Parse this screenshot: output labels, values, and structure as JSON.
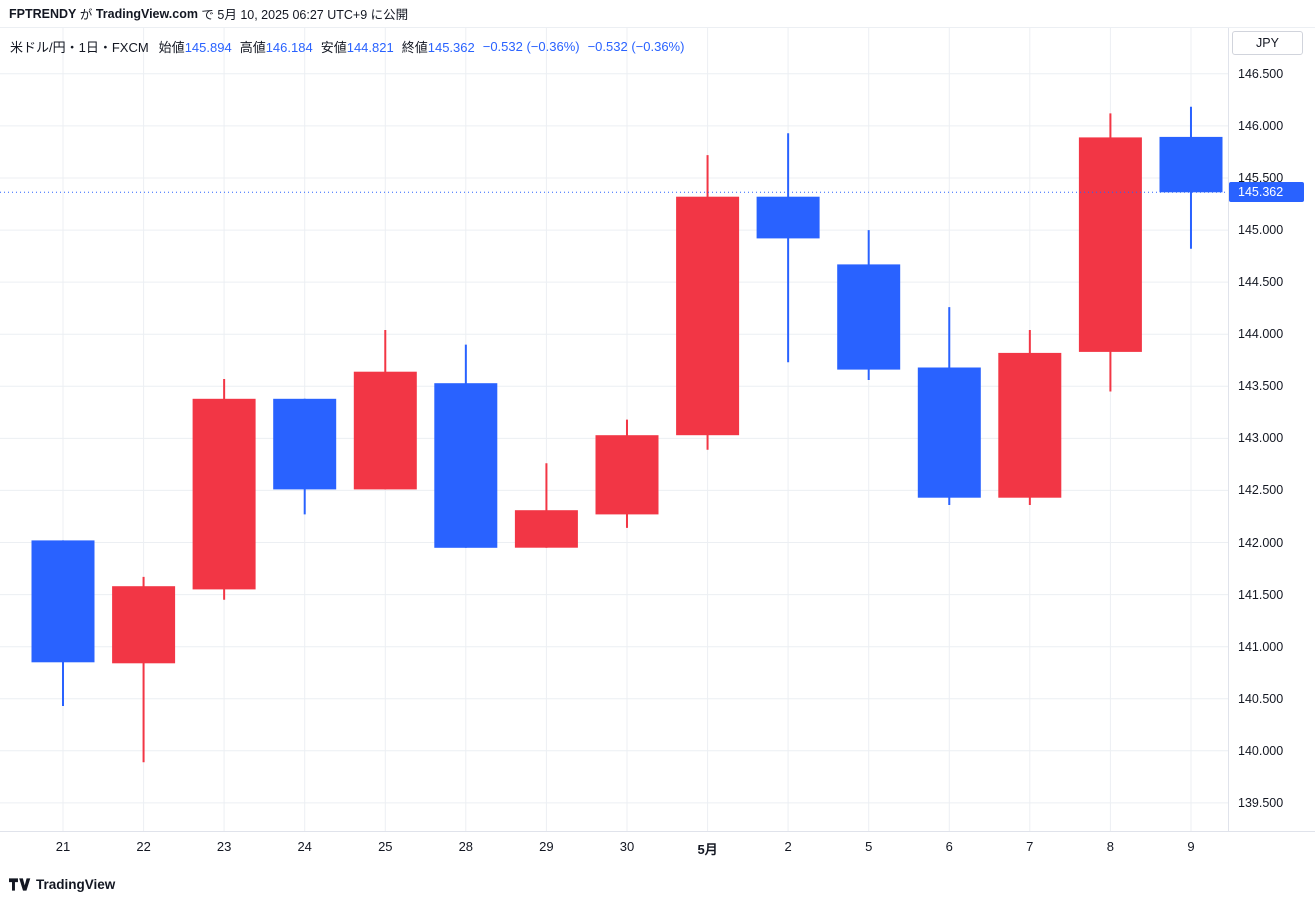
{
  "banner": {
    "author": "FPTRENDY",
    "particle_ga": " が ",
    "site": "TradingView.com",
    "particle_de": " で ",
    "published": "5月 10, 2025 06:27 UTC+9 に公開"
  },
  "legend": {
    "symbol_title": "米ドル/円・1日・FXCM",
    "open_label": "始値",
    "open_value": "145.894",
    "high_label": "高値",
    "high_value": "146.184",
    "low_label": "安値",
    "low_value": "144.821",
    "close_label": "終値",
    "close_value": "145.362",
    "change": "−0.532 (−0.36%)",
    "change_secondary": "−0.532 (−0.36%)"
  },
  "price_axis": {
    "currency": "JPY",
    "tick_labels": [
      "146.500",
      "146.000",
      "145.500",
      "145.000",
      "144.500",
      "144.000",
      "143.500",
      "143.000",
      "142.500",
      "142.000",
      "141.500",
      "141.000",
      "140.500",
      "140.000",
      "139.500"
    ],
    "last_price_label": "145.362"
  },
  "time_axis": {
    "labels": [
      "21",
      "22",
      "23",
      "24",
      "25",
      "28",
      "29",
      "30",
      "5月",
      "2",
      "5",
      "6",
      "7",
      "8",
      "9"
    ],
    "bold_label": "5月"
  },
  "footer": {
    "logo_text": "TradingView"
  },
  "colors": {
    "up_candle": "#f23645",
    "down_candle": "#2962ff",
    "grid": "#eceff3",
    "axis_border": "#e0e3eb",
    "text": "#131722",
    "legend_value": "#2962ff",
    "last_price_badge_bg": "#2962ff",
    "last_price_badge_text": "#ffffff"
  },
  "chart_data": {
    "type": "candlestick",
    "title": "米ドル/円・1日・FXCM",
    "color_convention": "red body = bullish (close >= open), blue body = bearish (close < open)",
    "up_color": "#f23645",
    "down_color": "#2962ff",
    "grid": true,
    "legend_position": "top-left",
    "categories": [
      "21",
      "22",
      "23",
      "24",
      "25",
      "28",
      "29",
      "30",
      "5月",
      "2",
      "5",
      "6",
      "7",
      "8",
      "9"
    ],
    "ohlc": [
      {
        "open": 142.02,
        "high": 142.02,
        "low": 140.43,
        "close": 140.85
      },
      {
        "open": 140.84,
        "high": 141.67,
        "low": 139.89,
        "close": 141.58
      },
      {
        "open": 141.55,
        "high": 143.57,
        "low": 141.45,
        "close": 143.38
      },
      {
        "open": 143.38,
        "high": 143.38,
        "low": 142.27,
        "close": 142.51
      },
      {
        "open": 142.51,
        "high": 144.04,
        "low": 142.51,
        "close": 143.64
      },
      {
        "open": 143.53,
        "high": 143.9,
        "low": 141.95,
        "close": 141.95
      },
      {
        "open": 141.95,
        "high": 142.76,
        "low": 141.95,
        "close": 142.31
      },
      {
        "open": 142.27,
        "high": 143.18,
        "low": 142.14,
        "close": 143.03
      },
      {
        "open": 143.03,
        "high": 145.72,
        "low": 142.89,
        "close": 145.32
      },
      {
        "open": 145.32,
        "high": 145.93,
        "low": 143.73,
        "close": 144.92
      },
      {
        "open": 144.67,
        "high": 145.0,
        "low": 143.56,
        "close": 143.66
      },
      {
        "open": 143.68,
        "high": 144.26,
        "low": 142.36,
        "close": 142.43
      },
      {
        "open": 142.43,
        "high": 144.04,
        "low": 142.36,
        "close": 143.82
      },
      {
        "open": 143.83,
        "high": 146.12,
        "low": 143.45,
        "close": 145.89
      },
      {
        "open": 145.894,
        "high": 146.184,
        "low": 144.821,
        "close": 145.362
      }
    ],
    "last_price": 145.362,
    "ylim": [
      139.23,
      146.94
    ],
    "yticks": [
      146.5,
      146.0,
      145.5,
      145.0,
      144.5,
      144.0,
      143.5,
      143.0,
      142.5,
      142.0,
      141.5,
      141.0,
      140.5,
      140.0,
      139.5
    ]
  }
}
